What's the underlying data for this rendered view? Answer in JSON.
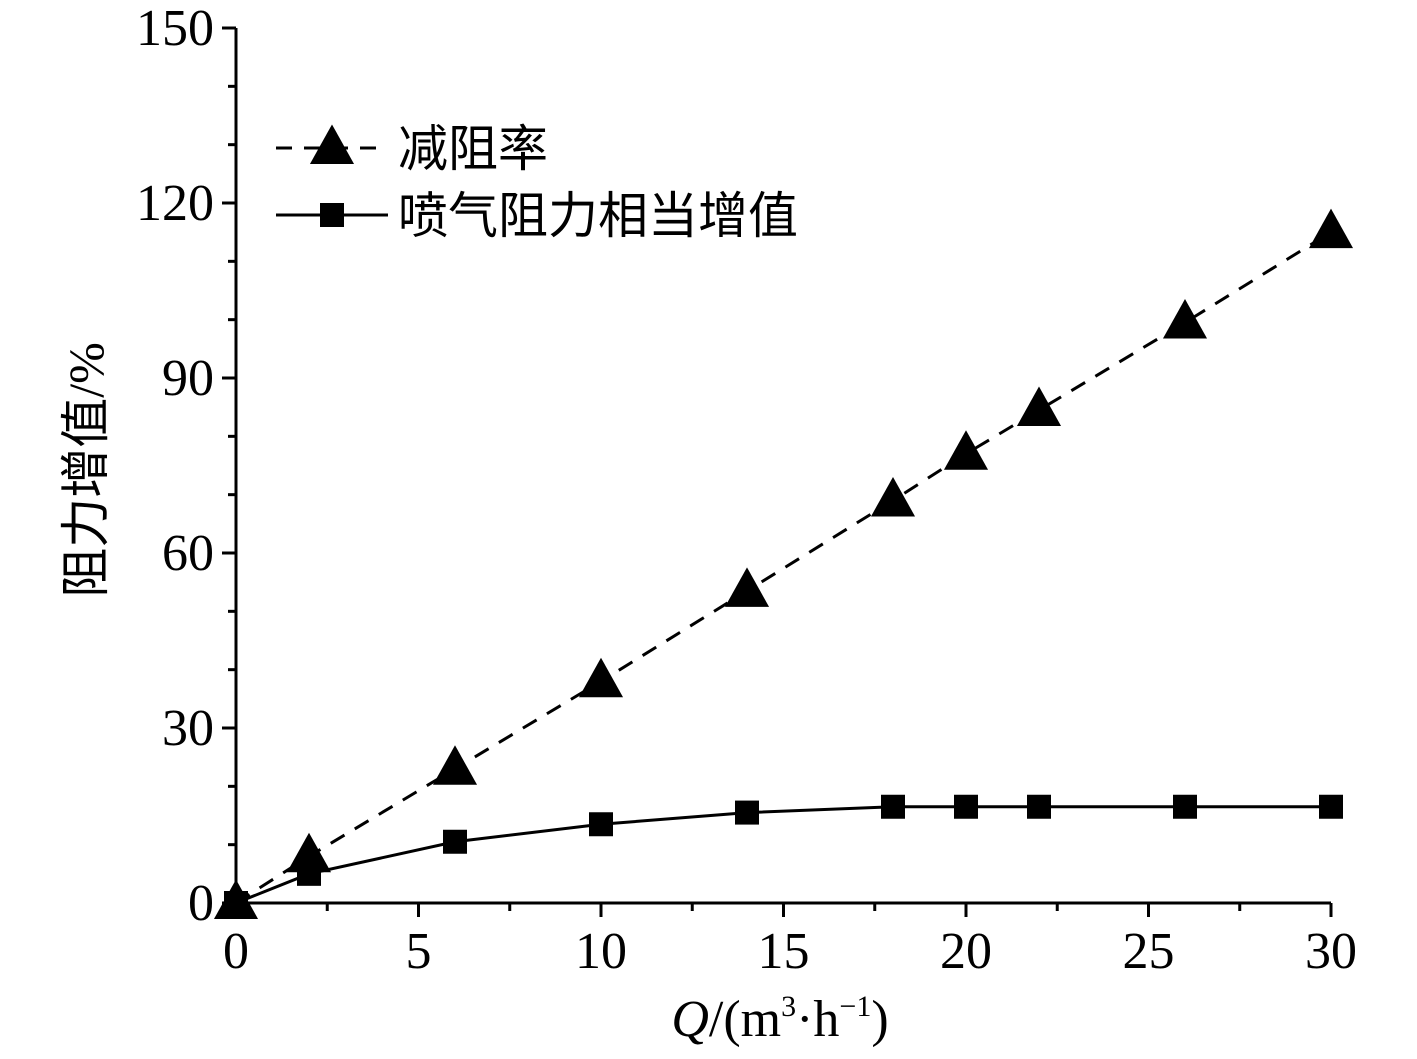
{
  "chart_data": {
    "type": "line",
    "xlabel_parts": {
      "q": "Q",
      "open": "/(m",
      "sup3": "3",
      "dot": "·h",
      "supneg": "−1",
      "close": ")"
    },
    "ylabel": "阻力增值/%",
    "xlim": [
      0,
      30
    ],
    "ylim": [
      0,
      150
    ],
    "xticks": [
      "0",
      "5",
      "10",
      "15",
      "20",
      "25",
      "30"
    ],
    "yticks": [
      "0",
      "30",
      "60",
      "90",
      "120",
      "150"
    ],
    "legend_position": "top-left",
    "grid": false,
    "series": [
      {
        "name": "减阻率",
        "marker": "triangle",
        "line_style": "dashed",
        "color": "#000000",
        "x": [
          0,
          2,
          6,
          10,
          14,
          18,
          20,
          22,
          26,
          30
        ],
        "y": [
          0,
          8,
          23,
          38,
          53.5,
          69,
          77,
          84.5,
          99.5,
          115
        ]
      },
      {
        "name": "喷气阻力相当增值",
        "marker": "square",
        "line_style": "solid",
        "color": "#000000",
        "x": [
          0,
          2,
          6,
          10,
          14,
          18,
          20,
          22,
          26,
          30
        ],
        "y": [
          0,
          5,
          10.5,
          13.5,
          15.5,
          16.5,
          16.5,
          16.5,
          16.5,
          16.5
        ]
      }
    ]
  }
}
